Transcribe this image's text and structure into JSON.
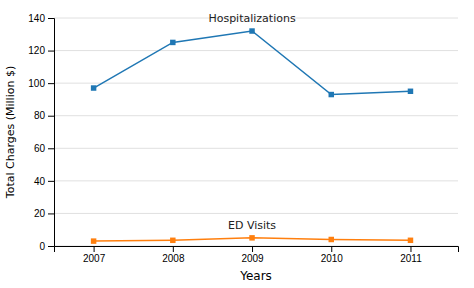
{
  "chart_data": {
    "type": "line",
    "x": [
      2007,
      2008,
      2009,
      2010,
      2011
    ],
    "series": [
      {
        "name": "Hospitalizations",
        "values": [
          97,
          125,
          132,
          93,
          95
        ]
      },
      {
        "name": "ED Visits",
        "values": [
          3,
          3.5,
          5,
          4,
          3.5
        ]
      }
    ],
    "xlabel": "Years",
    "ylabel": "Total Charges (Million $)",
    "xlim": [
      2006.5,
      2011.6
    ],
    "xticks": [
      2007,
      2008,
      2009,
      2010,
      2011
    ],
    "ylim": [
      0,
      140
    ],
    "yticks": [
      0,
      20,
      40,
      60,
      80,
      100,
      120,
      140
    ],
    "grid": true,
    "marker": "square"
  }
}
